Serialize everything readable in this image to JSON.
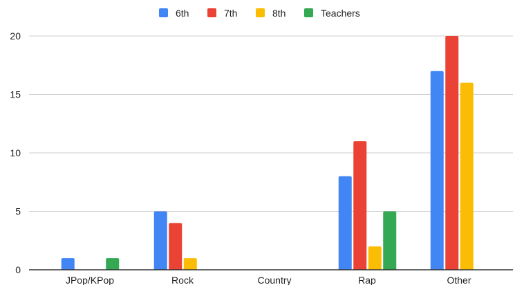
{
  "chart_data": {
    "type": "bar",
    "categories": [
      "JPop/KPop",
      "Rock",
      "Country",
      "Rap",
      "Other"
    ],
    "series": [
      {
        "name": "6th",
        "color": "#4285F4",
        "values": [
          1,
          5,
          0,
          8,
          17
        ]
      },
      {
        "name": "7th",
        "color": "#EA4335",
        "values": [
          0,
          4,
          0,
          11,
          20
        ]
      },
      {
        "name": "8th",
        "color": "#FBBC04",
        "values": [
          0,
          1,
          0,
          2,
          16
        ]
      },
      {
        "name": "Teachers",
        "color": "#34A853",
        "values": [
          1,
          0,
          0,
          5,
          0
        ]
      }
    ],
    "ylim": [
      0,
      20
    ],
    "yticks": [
      "0",
      "5",
      "10",
      "15",
      "20"
    ],
    "grid": true,
    "legend_position": "top"
  }
}
